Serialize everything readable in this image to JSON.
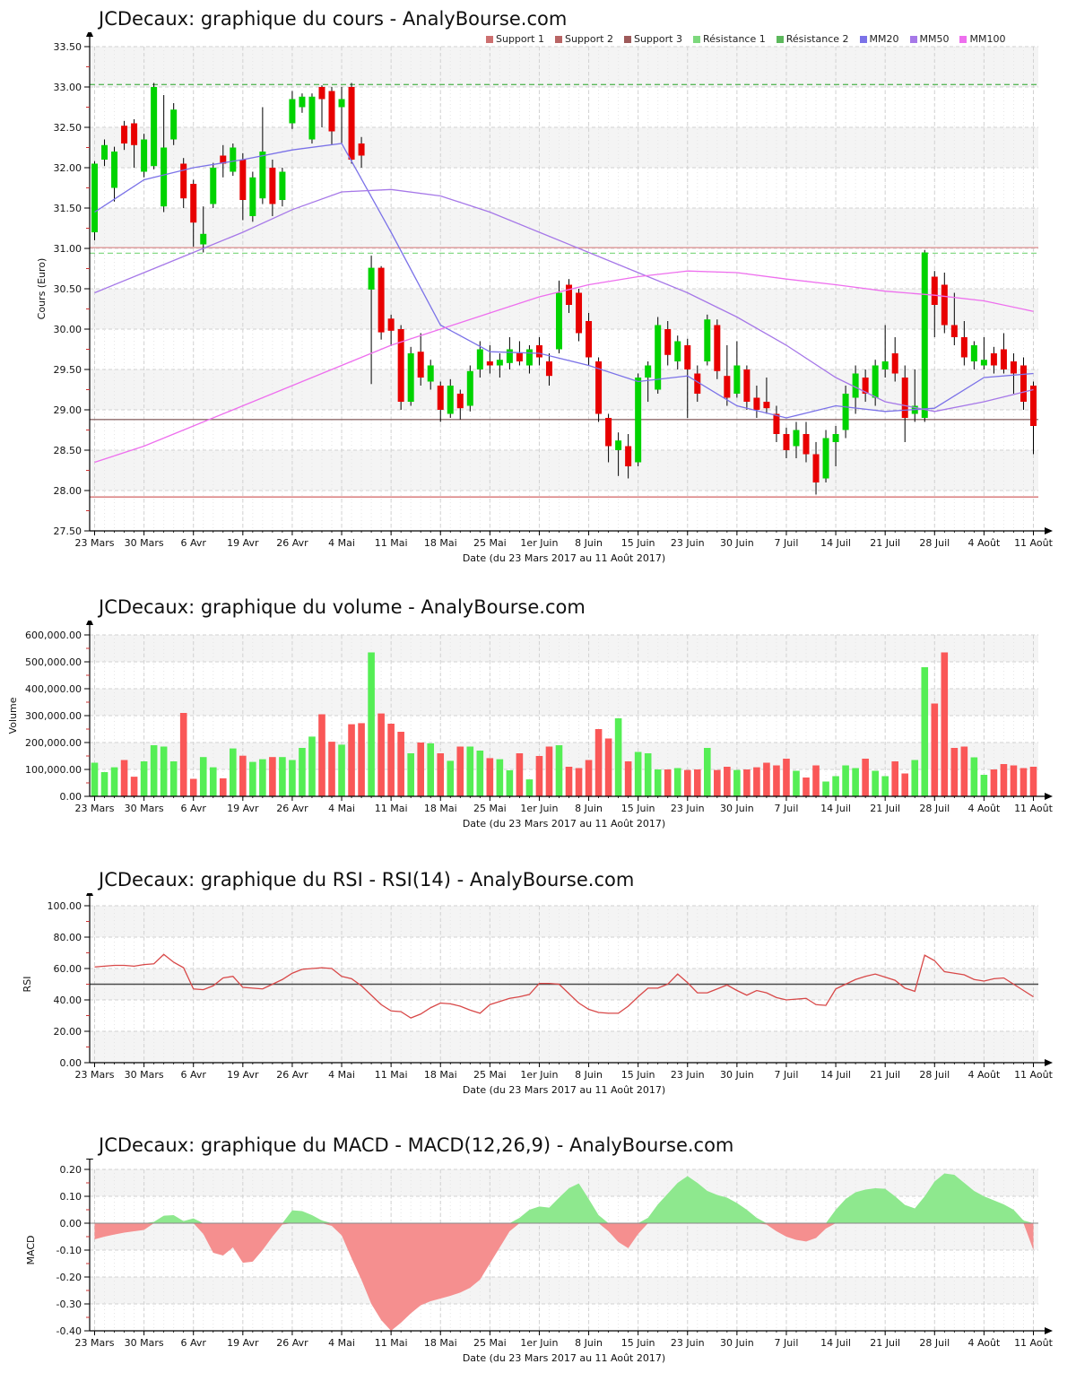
{
  "page": {
    "site": "AnalyBourse.com",
    "instrument": "JCDecaux"
  },
  "legend": {
    "items": [
      {
        "name": "support-1",
        "label": "Support 1",
        "color": "#cd7070"
      },
      {
        "name": "support-2",
        "label": "Support 2",
        "color": "#b96565"
      },
      {
        "name": "support-3",
        "label": "Support 3",
        "color": "#9e5a5a"
      },
      {
        "name": "resistance-1",
        "label": "Résistance 1",
        "color": "#7dd87d"
      },
      {
        "name": "resistance-2",
        "label": "Résistance 2",
        "color": "#5cb85c"
      },
      {
        "name": "mm20",
        "label": "MM20",
        "color": "#7b72e8"
      },
      {
        "name": "mm50",
        "label": "MM50",
        "color": "#a678e8"
      },
      {
        "name": "mm100",
        "label": "MM100",
        "color": "#ee6fee"
      }
    ]
  },
  "colors": {
    "candle_up": "#00d300",
    "candle_down": "#e80000",
    "volume_up": "#55ee55",
    "volume_down": "#fa5757",
    "rsi_line": "#d84848",
    "macd_up": "#8ee88e",
    "macd_down": "#f58f8f",
    "mm20": "#7b72e8",
    "mm50": "#a678e8",
    "mm100": "#ee6fee",
    "midline": "#4a4a4a",
    "band": "#f4f4f4"
  },
  "chart_data": [
    {
      "type": "candlestick",
      "title": "JCDecaux: graphique du cours - AnalyBourse.com",
      "ylabel": "Cours (Euro)",
      "xlabel": "Date (du 23 Mars 2017 au 11 Août 2017)",
      "ylim": [
        27.5,
        33.5
      ],
      "yticks": [
        "33.50",
        "33.00",
        "32.50",
        "32.00",
        "31.50",
        "31.00",
        "30.50",
        "30.00",
        "29.50",
        "29.00",
        "28.50",
        "28.00",
        "27.50"
      ],
      "x_categories": [
        "23 Mars",
        "30 Mars",
        "6 Avr",
        "19 Avr",
        "26 Avr",
        "4 Mai",
        "11 Mai",
        "18 Mai",
        "25 Mai",
        "1er Juin",
        "8 Juin",
        "15 Juin",
        "23 Juin",
        "30 Juin",
        "7 Juil",
        "14 Juil",
        "21 Juil",
        "28 Juil",
        "4 Août",
        "11 Août"
      ],
      "candles_ohlc": [
        [
          31.2,
          32.08,
          31.1,
          32.05
        ],
        [
          32.1,
          32.35,
          32.02,
          32.28
        ],
        [
          31.75,
          32.26,
          31.58,
          32.2
        ],
        [
          32.52,
          32.58,
          32.22,
          32.3
        ],
        [
          32.55,
          32.6,
          32.0,
          32.28
        ],
        [
          31.95,
          32.42,
          31.88,
          32.35
        ],
        [
          32.02,
          33.05,
          31.98,
          33.0
        ],
        [
          31.52,
          32.9,
          31.45,
          32.25
        ],
        [
          32.35,
          32.8,
          32.28,
          32.72
        ],
        [
          32.05,
          32.12,
          31.5,
          31.62
        ],
        [
          31.8,
          31.85,
          31.02,
          31.32
        ],
        [
          31.05,
          31.52,
          30.95,
          31.18
        ],
        [
          31.55,
          32.06,
          31.5,
          32.0
        ],
        [
          32.15,
          32.28,
          31.88,
          32.05
        ],
        [
          31.95,
          32.3,
          31.9,
          32.25
        ],
        [
          32.1,
          32.18,
          31.35,
          31.6
        ],
        [
          31.4,
          31.95,
          31.33,
          31.88
        ],
        [
          31.62,
          32.75,
          31.55,
          32.2
        ],
        [
          32.0,
          32.1,
          31.4,
          31.55
        ],
        [
          31.6,
          32.0,
          31.52,
          31.95
        ],
        [
          32.55,
          32.95,
          32.48,
          32.85
        ],
        [
          32.75,
          32.92,
          32.68,
          32.88
        ],
        [
          32.35,
          32.92,
          32.3,
          32.88
        ],
        [
          33.0,
          33.02,
          32.5,
          32.85
        ],
        [
          32.95,
          33.0,
          32.28,
          32.45
        ],
        [
          32.75,
          33.0,
          32.3,
          32.85
        ],
        [
          33.0,
          33.05,
          32.05,
          32.1
        ],
        [
          32.3,
          32.38,
          32.0,
          32.15
        ],
        [
          30.49,
          30.91,
          29.32,
          30.76
        ],
        [
          30.76,
          30.78,
          29.87,
          29.96
        ],
        [
          30.13,
          30.18,
          29.79,
          29.98
        ],
        [
          30.0,
          30.05,
          29.0,
          29.1
        ],
        [
          29.1,
          29.78,
          29.05,
          29.7
        ],
        [
          29.72,
          29.95,
          29.3,
          29.4
        ],
        [
          29.35,
          29.62,
          29.25,
          29.55
        ],
        [
          29.3,
          29.35,
          28.85,
          29.0
        ],
        [
          28.95,
          29.38,
          28.9,
          29.3
        ],
        [
          29.2,
          29.25,
          28.88,
          29.02
        ],
        [
          29.05,
          29.55,
          28.98,
          29.48
        ],
        [
          29.5,
          29.85,
          29.4,
          29.75
        ],
        [
          29.6,
          29.8,
          29.45,
          29.55
        ],
        [
          29.55,
          29.7,
          29.4,
          29.62
        ],
        [
          29.58,
          29.9,
          29.5,
          29.75
        ],
        [
          29.7,
          29.85,
          29.55,
          29.6
        ],
        [
          29.55,
          29.8,
          29.45,
          29.75
        ],
        [
          29.8,
          29.9,
          29.55,
          29.65
        ],
        [
          29.6,
          29.7,
          29.3,
          29.42
        ],
        [
          29.75,
          30.6,
          29.7,
          30.45
        ],
        [
          30.55,
          30.62,
          30.2,
          30.3
        ],
        [
          30.45,
          30.5,
          29.85,
          29.95
        ],
        [
          30.1,
          30.2,
          29.55,
          29.65
        ],
        [
          29.6,
          29.65,
          28.85,
          28.95
        ],
        [
          28.9,
          28.95,
          28.35,
          28.55
        ],
        [
          28.5,
          28.72,
          28.18,
          28.62
        ],
        [
          28.55,
          28.7,
          28.15,
          28.3
        ],
        [
          28.35,
          29.45,
          28.3,
          29.4
        ],
        [
          29.4,
          29.6,
          29.1,
          29.55
        ],
        [
          29.25,
          30.15,
          29.2,
          30.05
        ],
        [
          30.0,
          30.1,
          29.55,
          29.68
        ],
        [
          29.6,
          29.92,
          29.5,
          29.85
        ],
        [
          29.8,
          29.88,
          28.9,
          29.5
        ],
        [
          29.45,
          29.55,
          29.1,
          29.2
        ],
        [
          29.6,
          30.18,
          29.55,
          30.12
        ],
        [
          30.05,
          30.12,
          29.38,
          29.48
        ],
        [
          29.42,
          29.8,
          29.05,
          29.15
        ],
        [
          29.2,
          29.85,
          29.15,
          29.55
        ],
        [
          29.5,
          29.55,
          29.0,
          29.1
        ],
        [
          29.15,
          29.3,
          28.9,
          29.0
        ],
        [
          29.1,
          29.4,
          28.95,
          29.02
        ],
        [
          28.95,
          29.05,
          28.6,
          28.7
        ],
        [
          28.7,
          28.78,
          28.4,
          28.5
        ],
        [
          28.55,
          28.85,
          28.4,
          28.75
        ],
        [
          28.7,
          28.85,
          28.35,
          28.45
        ],
        [
          28.45,
          28.6,
          27.95,
          28.1
        ],
        [
          28.15,
          28.75,
          28.1,
          28.65
        ],
        [
          28.6,
          28.8,
          28.3,
          28.7
        ],
        [
          28.75,
          29.3,
          28.65,
          29.2
        ],
        [
          29.15,
          29.55,
          28.95,
          29.45
        ],
        [
          29.4,
          29.5,
          29.1,
          29.2
        ],
        [
          29.15,
          29.62,
          29.05,
          29.55
        ],
        [
          29.5,
          30.05,
          29.4,
          29.6
        ],
        [
          29.7,
          29.9,
          29.35,
          29.45
        ],
        [
          29.4,
          29.55,
          28.6,
          28.9
        ],
        [
          28.95,
          29.5,
          28.85,
          29.05
        ],
        [
          28.9,
          30.98,
          28.85,
          30.95
        ],
        [
          30.65,
          30.72,
          29.9,
          30.3
        ],
        [
          30.55,
          30.7,
          29.95,
          30.05
        ],
        [
          30.05,
          30.45,
          29.8,
          29.9
        ],
        [
          29.9,
          30.1,
          29.55,
          29.65
        ],
        [
          29.6,
          29.85,
          29.5,
          29.8
        ],
        [
          29.55,
          29.9,
          29.5,
          29.62
        ],
        [
          29.7,
          29.78,
          29.45,
          29.55
        ],
        [
          29.75,
          29.95,
          29.45,
          29.5
        ],
        [
          29.6,
          29.7,
          29.2,
          29.45
        ],
        [
          29.55,
          29.65,
          29.0,
          29.1
        ],
        [
          29.3,
          29.35,
          28.45,
          28.8
        ]
      ],
      "overlays": {
        "mm20": [
          31.45,
          31.85,
          32.0,
          32.1,
          32.22,
          32.3,
          31.2,
          30.05,
          29.72,
          29.7,
          29.55,
          29.35,
          29.42,
          29.05,
          28.9,
          29.05,
          28.98,
          29.02,
          29.4,
          29.45
        ],
        "mm50": [
          30.45,
          30.7,
          30.95,
          31.2,
          31.48,
          31.7,
          31.73,
          31.65,
          31.45,
          31.2,
          30.95,
          30.7,
          30.45,
          30.15,
          29.8,
          29.4,
          29.1,
          28.98,
          29.1,
          29.25
        ],
        "mm100": [
          28.35,
          28.55,
          28.8,
          29.05,
          29.3,
          29.55,
          29.8,
          30.0,
          30.2,
          30.4,
          30.55,
          30.65,
          30.72,
          30.7,
          30.62,
          30.55,
          30.47,
          30.42,
          30.35,
          30.22
        ]
      },
      "levels": [
        {
          "name": "resistance-2",
          "value": 33.03,
          "color": "#5cb85c",
          "dashed": true
        },
        {
          "name": "support-1",
          "value": 31.01,
          "color": "#dd8f8f",
          "dashed": false
        },
        {
          "name": "resistance-1",
          "value": 30.94,
          "color": "#86d986",
          "dashed": true
        },
        {
          "name": "support-2",
          "value": 28.88,
          "color": "#8f6b6b",
          "dashed": false
        },
        {
          "name": "support-3",
          "value": 27.92,
          "color": "#d57070",
          "dashed": false
        }
      ]
    },
    {
      "type": "bar",
      "title": "JCDecaux: graphique du volume - AnalyBourse.com",
      "ylabel": "Volume",
      "xlabel": "Date (du 23 Mars 2017 au 11 Août 2017)",
      "ylim": [
        0,
        600000
      ],
      "yticks": [
        "600,000.00",
        "500,000.00",
        "400,000.00",
        "300,000.00",
        "200,000.00",
        "100,000.00",
        "0.00"
      ],
      "values": [
        125000,
        90000,
        108000,
        135000,
        73000,
        130000,
        190000,
        185000,
        130000,
        310000,
        65000,
        146000,
        108000,
        67000,
        178000,
        151000,
        128000,
        138000,
        146000,
        146000,
        135000,
        180000,
        222000,
        305000,
        203000,
        192000,
        268000,
        272000,
        535000,
        308000,
        270000,
        240000,
        160000,
        200000,
        197000,
        160000,
        132000,
        185000,
        185000,
        170000,
        142000,
        138000,
        97000,
        160000,
        63000,
        150000,
        185000,
        190000,
        110000,
        105000,
        135000,
        250000,
        215000,
        290000,
        130000,
        165000,
        160000,
        100000,
        100000,
        105000,
        98000,
        100000,
        180000,
        98000,
        110000,
        98000,
        100000,
        108000,
        125000,
        115000,
        140000,
        95000,
        70000,
        115000,
        55000,
        75000,
        115000,
        105000,
        140000,
        95000,
        75000,
        130000,
        85000,
        135000,
        480000,
        345000,
        535000,
        180000,
        185000,
        145000,
        80000,
        100000,
        120000,
        115000,
        105000,
        110000
      ]
    },
    {
      "type": "line",
      "title": "JCDecaux: graphique du RSI - RSI(14) - AnalyBourse.com",
      "ylabel": "RSI",
      "xlabel": "Date (du 23 Mars 2017 au 11 Août 2017)",
      "ylim": [
        0,
        100
      ],
      "yticks": [
        "100.00",
        "80.00",
        "60.00",
        "40.00",
        "20.00",
        "0.00"
      ],
      "midline": 50,
      "values": [
        61,
        61.5,
        62,
        62,
        61.5,
        62.5,
        63,
        69,
        64,
        60.5,
        47,
        46.5,
        49,
        54,
        55,
        48,
        47.5,
        47,
        50,
        53,
        57,
        59.5,
        60,
        60.5,
        60,
        55,
        53.5,
        49,
        43,
        37,
        33,
        32.5,
        28.5,
        31,
        35,
        38,
        37.5,
        36,
        33.5,
        31.5,
        37,
        39,
        41,
        42,
        43.5,
        50.5,
        50.5,
        50,
        44,
        38,
        34,
        32,
        31.5,
        31.5,
        36,
        42,
        47.5,
        47.5,
        50,
        56.5,
        51,
        44.5,
        44.5,
        47,
        49.5,
        46,
        43,
        46,
        44.5,
        41.5,
        40,
        40.5,
        41,
        37,
        36.5,
        47,
        50,
        53,
        55,
        56.5,
        54.5,
        52.5,
        47.5,
        45.5,
        68.5,
        65,
        58,
        57,
        56,
        53,
        52,
        53.5,
        54,
        50,
        46,
        42
      ]
    },
    {
      "type": "area",
      "title": "JCDecaux: graphique du MACD - MACD(12,26,9) - AnalyBourse.com",
      "ylabel": "MACD",
      "xlabel": "Date (du 23 Mars 2017 au 11 Août 2017)",
      "ylim": [
        -0.4,
        0.2
      ],
      "yticks": [
        "0.20",
        "0.10",
        "0.00",
        "-0.10",
        "-0.20",
        "-0.30",
        "-0.40"
      ],
      "values": [
        -0.06,
        -0.05,
        -0.042,
        -0.035,
        -0.03,
        -0.025,
        0.005,
        0.028,
        0.03,
        0.008,
        0.018,
        -0.04,
        -0.11,
        -0.12,
        -0.09,
        -0.147,
        -0.143,
        -0.1,
        -0.05,
        -0.005,
        0.048,
        0.045,
        0.03,
        0.01,
        -0.01,
        -0.045,
        -0.13,
        -0.21,
        -0.3,
        -0.36,
        -0.4,
        -0.37,
        -0.335,
        -0.305,
        -0.29,
        -0.28,
        -0.27,
        -0.258,
        -0.24,
        -0.21,
        -0.15,
        -0.09,
        -0.03,
        0.02,
        0.05,
        0.062,
        0.058,
        0.095,
        0.13,
        0.148,
        0.09,
        0.03,
        -0.03,
        -0.07,
        -0.093,
        -0.04,
        0.02,
        0.07,
        0.11,
        0.15,
        0.175,
        0.15,
        0.12,
        0.105,
        0.095,
        0.075,
        0.05,
        0.02,
        -0.005,
        -0.03,
        -0.05,
        -0.062,
        -0.068,
        -0.055,
        -0.02,
        0.05,
        0.09,
        0.115,
        0.125,
        0.13,
        0.128,
        0.1,
        0.068,
        0.055,
        0.1,
        0.155,
        0.185,
        0.18,
        0.15,
        0.12,
        0.1,
        0.085,
        0.07,
        0.05,
        0.01,
        -0.1
      ]
    }
  ]
}
